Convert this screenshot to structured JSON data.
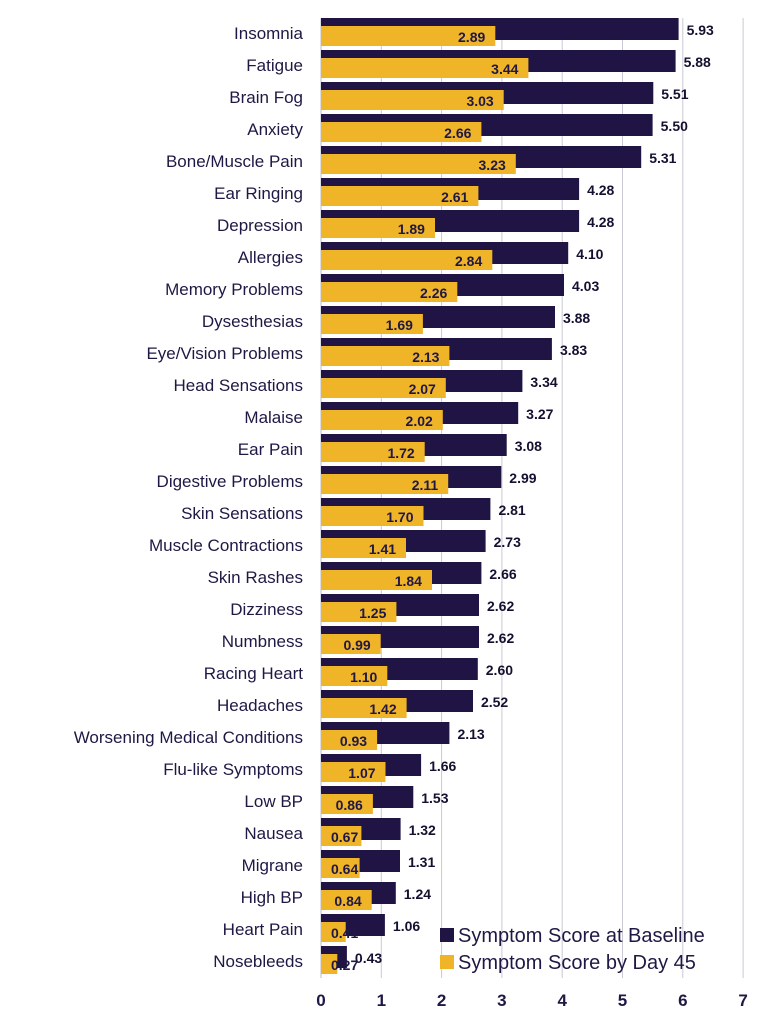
{
  "chart_data": {
    "type": "bar",
    "orientation": "horizontal",
    "categories": [
      "Insomnia",
      "Fatigue",
      "Brain Fog",
      "Anxiety",
      "Bone/Muscle Pain",
      "Ear Ringing",
      "Depression",
      "Allergies",
      "Memory Problems",
      "Dysesthesias",
      "Eye/Vision Problems",
      "Head Sensations",
      "Malaise",
      "Ear Pain",
      "Digestive Problems",
      "Skin Sensations",
      "Muscle Contractions",
      "Skin Rashes",
      "Dizziness",
      "Numbness",
      "Racing Heart",
      "Headaches",
      "Worsening Medical Conditions",
      "Flu-like Symptoms",
      "Low BP",
      "Nausea",
      "Migrane",
      "High BP",
      "Heart Pain",
      "Nosebleeds"
    ],
    "series": [
      {
        "name": "Symptom Score at Baseline",
        "color": "#201445",
        "values": [
          5.93,
          5.88,
          5.51,
          5.5,
          5.31,
          4.28,
          4.28,
          4.1,
          4.03,
          3.88,
          3.83,
          3.34,
          3.27,
          3.08,
          2.99,
          2.81,
          2.73,
          2.66,
          2.62,
          2.62,
          2.6,
          2.52,
          2.13,
          1.66,
          1.53,
          1.32,
          1.31,
          1.24,
          1.06,
          0.43
        ],
        "labels": [
          "5.93",
          "5.88",
          "5.51",
          "5.50",
          "5.31",
          "4.28",
          "4.28",
          "4.10",
          "4.03",
          "3.88",
          "3.83",
          "3.34",
          "3.27",
          "3.08",
          "2.99",
          "2.81",
          "2.73",
          "2.66",
          "2.62",
          "2.62",
          "2.60",
          "2.52",
          "2.13",
          "1.66",
          "1.53",
          "1.32",
          "1.31",
          "1.24",
          "1.06",
          "0.43"
        ]
      },
      {
        "name": "Symptom Score by Day 45",
        "color": "#f0b429",
        "values": [
          2.89,
          3.44,
          3.03,
          2.66,
          3.23,
          2.61,
          1.89,
          2.84,
          2.26,
          1.69,
          2.13,
          2.07,
          2.02,
          1.72,
          2.11,
          1.7,
          1.41,
          1.84,
          1.25,
          0.99,
          1.1,
          1.42,
          0.93,
          1.07,
          0.86,
          0.67,
          0.64,
          0.84,
          0.41,
          0.27
        ],
        "labels": [
          "2.89",
          "3.44",
          "3.03",
          "2.66",
          "3.23",
          "2.61",
          "1.89",
          "2.84",
          "2.26",
          "1.69",
          "2.13",
          "2.07",
          "2.02",
          "1.72",
          "2.11",
          "1.70",
          "1.41",
          "1.84",
          "1.25",
          "0.99",
          "1.10",
          "1.42",
          "0.93",
          "1.07",
          "0.86",
          "0.67",
          "0.64",
          "0.84",
          "0.41",
          "0.27"
        ]
      }
    ],
    "xlim": [
      0,
      7
    ],
    "xticks": [
      "0",
      "1",
      "2",
      "3",
      "4",
      "5",
      "6",
      "7"
    ],
    "grid": true,
    "legend_position": "bottom-right",
    "title": "",
    "xlabel": "",
    "ylabel": ""
  }
}
